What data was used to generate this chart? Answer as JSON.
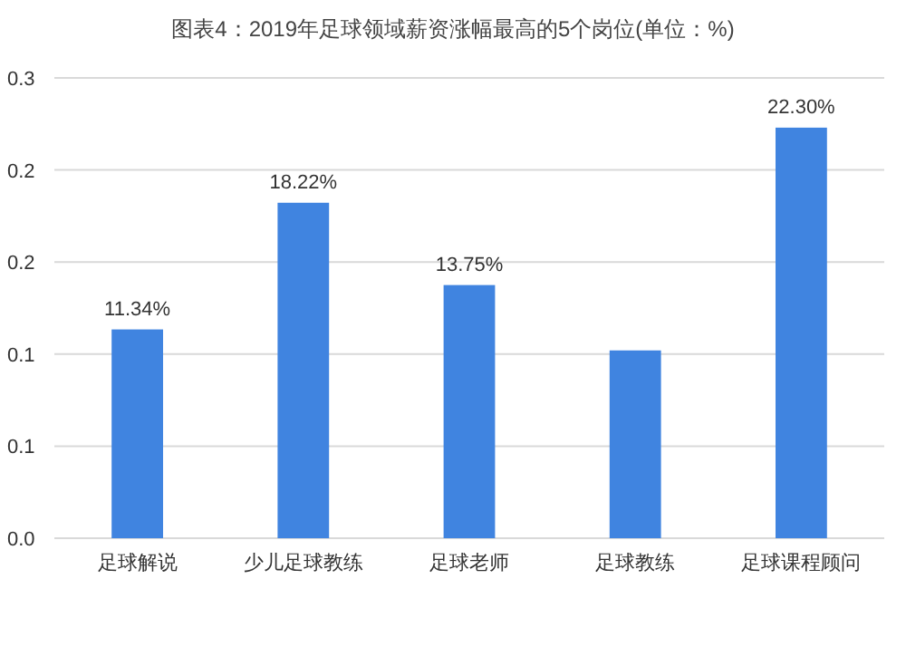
{
  "chart_data": {
    "type": "bar",
    "title": "图表4：2019年足球领域薪资涨幅最高的5个岗位(单位：%)",
    "categories": [
      "足球解说",
      "少儿足球教练",
      "足球老师",
      "足球教练",
      "足球课程顾问"
    ],
    "values": [
      0.1134,
      0.1822,
      0.1375,
      0.102,
      0.223
    ],
    "value_labels": [
      "11.34%",
      "18.22%",
      "13.75%",
      null,
      "22.30%"
    ],
    "color": "#4084e0",
    "ylim": [
      0,
      0.25
    ],
    "yticks": [
      {
        "value": 0,
        "label": "0.0"
      },
      {
        "value": 0.05,
        "label": "0.1"
      },
      {
        "value": 0.1,
        "label": "0.1"
      },
      {
        "value": 0.15,
        "label": "0.2"
      },
      {
        "value": 0.2,
        "label": "0.2"
      },
      {
        "value": 0.25,
        "label": "0.3"
      }
    ],
    "grid": "y"
  }
}
